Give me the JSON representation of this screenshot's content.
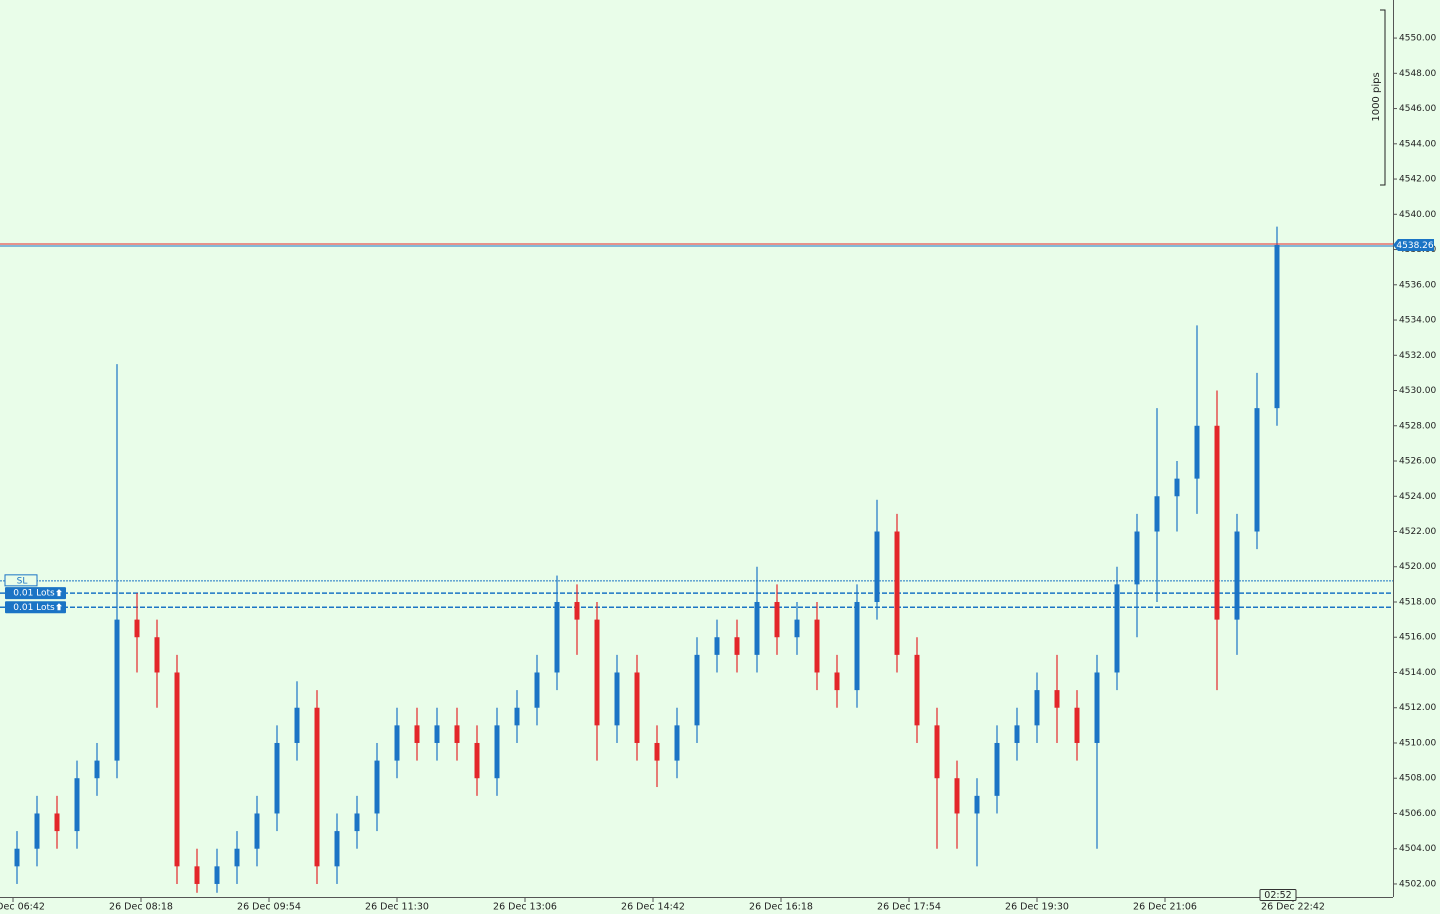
{
  "chart_data": {
    "type": "candlestick",
    "x": [
      405,
      420,
      435,
      450,
      465,
      480,
      495,
      510,
      525,
      540,
      555,
      570,
      585,
      600,
      615,
      630,
      645,
      660,
      675,
      690,
      705,
      720,
      735,
      750,
      765,
      780,
      795,
      810,
      825,
      840,
      855,
      870,
      885,
      900,
      915,
      930,
      945,
      960,
      975,
      990,
      1005,
      1020,
      1035,
      1050,
      1065,
      1080,
      1095,
      1110,
      1125,
      1140,
      1155,
      1170,
      1185,
      1200,
      1215,
      1230,
      1245,
      1260,
      1275,
      1290,
      1305,
      1320,
      1335,
      1350
    ],
    "open": [
      4503,
      4504,
      4506,
      4505,
      4508,
      4509,
      4517,
      4516,
      4514,
      4503,
      4502,
      4503,
      4504,
      4506,
      4510,
      4512,
      4503,
      4505,
      4506,
      4509,
      4511,
      4510,
      4511,
      4510,
      4508,
      4511,
      4512,
      4514,
      4518,
      4517,
      4511,
      4514,
      4510,
      4509,
      4511,
      4515,
      4516,
      4515,
      4518,
      4516,
      4517,
      4514,
      4513,
      4518,
      4522,
      4515,
      4511,
      4508,
      4506,
      4507,
      4510,
      4511,
      4513,
      4512,
      4510,
      4514,
      4519,
      4522,
      4524,
      4525,
      4528,
      4517,
      4522,
      4529
    ],
    "high": [
      4505,
      4507,
      4507,
      4509,
      4510,
      4531.5,
      4518.5,
      4517,
      4515,
      4504,
      4504,
      4505,
      4507,
      4511,
      4513.5,
      4513,
      4506,
      4507,
      4510,
      4512,
      4512,
      4512,
      4512,
      4511,
      4512,
      4513,
      4515,
      4519.5,
      4519,
      4518,
      4515,
      4515,
      4511,
      4512,
      4516,
      4517,
      4517,
      4520,
      4519,
      4518,
      4518,
      4515,
      4519,
      4523.8,
      4523,
      4516,
      4512,
      4509,
      4508,
      4511,
      4512,
      4514,
      4515,
      4513,
      4515,
      4520,
      4523,
      4529,
      4526,
      4533.7,
      4530,
      4523,
      4531,
      4539.3
    ],
    "low": [
      4502,
      4503,
      4504,
      4504,
      4507,
      4508,
      4514,
      4512,
      4502,
      4501.5,
      4501.5,
      4502,
      4503,
      4505,
      4509,
      4502,
      4502,
      4504,
      4505,
      4508,
      4509,
      4509,
      4509,
      4507,
      4507,
      4510,
      4511,
      4513,
      4515,
      4509,
      4510,
      4509,
      4507.5,
      4508,
      4510,
      4514,
      4514,
      4514,
      4515,
      4515,
      4513,
      4512,
      4512,
      4517,
      4514,
      4510,
      4504,
      4504,
      4503,
      4506,
      4509,
      4510,
      4510,
      4509,
      4504,
      4513,
      4516,
      4518,
      4522,
      4523,
      4513,
      4515,
      4521,
      4528
    ],
    "close": [
      4504,
      4506,
      4505,
      4508,
      4509,
      4517,
      4516,
      4514,
      4503,
      4502,
      4503,
      4504,
      4506,
      4510,
      4512,
      4503,
      4505,
      4506,
      4509,
      4511,
      4510,
      4511,
      4510,
      4508,
      4511,
      4512,
      4514,
      4518,
      4517,
      4511,
      4514,
      4510,
      4509,
      4511,
      4515,
      4516,
      4515,
      4518,
      4516,
      4517,
      4514,
      4513,
      4518,
      4522,
      4515,
      4511,
      4508,
      4506,
      4507,
      4510,
      4511,
      4513,
      4512,
      4510,
      4514,
      4519,
      4522,
      4524,
      4525,
      4528,
      4517,
      4522,
      4529,
      4538.26
    ],
    "up_color": "#1b74c5",
    "down_color": "#e3262a",
    "xlim": [
      392.25,
      1437
    ],
    "ylim": [
      4501.26,
      4552.16
    ],
    "xticks": [
      {
        "value": 402,
        "label": "26 Dec 06:42"
      },
      {
        "value": 498,
        "label": "26 Dec 08:18"
      },
      {
        "value": 594,
        "label": "26 Dec 09:54"
      },
      {
        "value": 690,
        "label": "26 Dec 11:30"
      },
      {
        "value": 786,
        "label": "26 Dec 13:06"
      },
      {
        "value": 882,
        "label": "26 Dec 14:42"
      },
      {
        "value": 978,
        "label": "26 Dec 16:18"
      },
      {
        "value": 1074,
        "label": "26 Dec 17:54"
      },
      {
        "value": 1170,
        "label": "26 Dec 19:30"
      },
      {
        "value": 1266,
        "label": "26 Dec 21:06"
      },
      {
        "value": 1362,
        "label": "26 Dec 22:42"
      }
    ],
    "yticks": [
      {
        "value": 4502,
        "label": "4502.00"
      },
      {
        "value": 4504,
        "label": "4504.00"
      },
      {
        "value": 4506,
        "label": "4506.00"
      },
      {
        "value": 4508,
        "label": "4508.00"
      },
      {
        "value": 4510,
        "label": "4510.00"
      },
      {
        "value": 4512,
        "label": "4512.00"
      },
      {
        "value": 4514,
        "label": "4514.00"
      },
      {
        "value": 4516,
        "label": "4516.00"
      },
      {
        "value": 4518,
        "label": "4518.00"
      },
      {
        "value": 4520,
        "label": "4520.00"
      },
      {
        "value": 4522,
        "label": "4522.00"
      },
      {
        "value": 4524,
        "label": "4524.00"
      },
      {
        "value": 4526,
        "label": "4526.00"
      },
      {
        "value": 4528,
        "label": "4528.00"
      },
      {
        "value": 4530,
        "label": "4530.00"
      },
      {
        "value": 4532,
        "label": "4532.00"
      },
      {
        "value": 4534,
        "label": "4534.00"
      },
      {
        "value": 4536,
        "label": "4536.00"
      },
      {
        "value": 4538,
        "label": "4538.00"
      },
      {
        "value": 4540,
        "label": "4540.00"
      },
      {
        "value": 4542,
        "label": "4542.00"
      },
      {
        "value": 4544,
        "label": "4544.00"
      },
      {
        "value": 4546,
        "label": "4546.00"
      },
      {
        "value": 4548,
        "label": "4548.00"
      },
      {
        "value": 4550,
        "label": "4550.00"
      }
    ],
    "bid": 4538.26,
    "orders": [
      {
        "label": "SL",
        "price": 4519.2
      },
      {
        "label": "0.01 Lots",
        "price": 4518.5
      },
      {
        "label": "0.01 Lots",
        "price": 4517.7
      }
    ],
    "scale_label": "1000 pips",
    "timer": "02:52"
  }
}
